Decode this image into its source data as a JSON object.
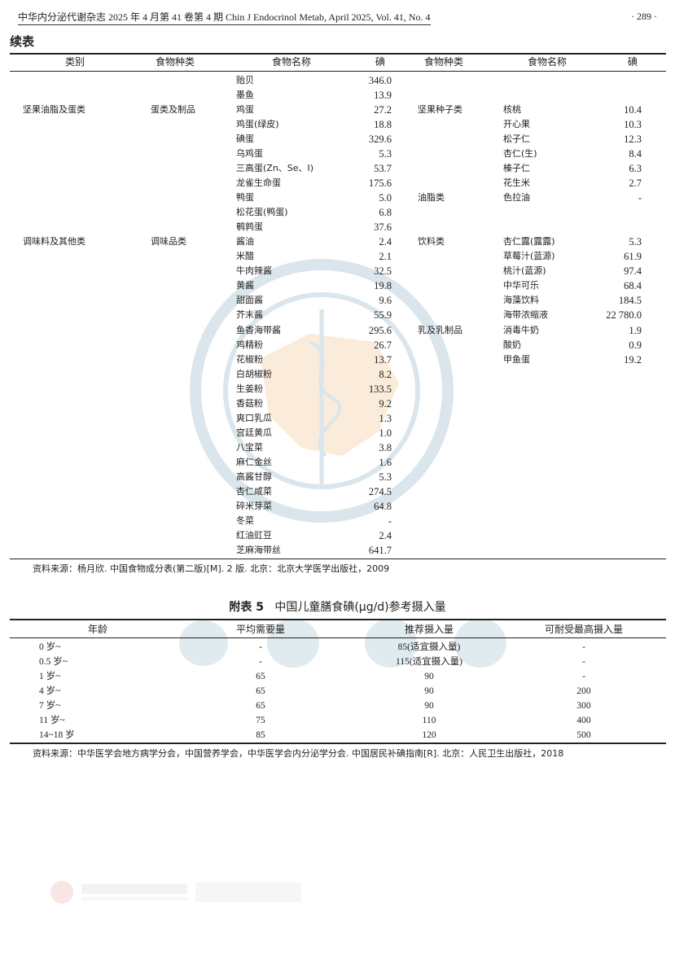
{
  "header": {
    "running_head": "中华内分泌代谢杂志 2025 年 4 月第 41 卷第 4 期   Chin J Endocrinol Metab, April 2025, Vol. 41, No. 4",
    "page_number": "· 289 ·"
  },
  "table1": {
    "continued_label": "续表",
    "headers": [
      "类别",
      "食物种类",
      "食物名称",
      "碘",
      "食物种类",
      "食物名称",
      "碘"
    ],
    "left_rows": [
      {
        "category": "",
        "type": "",
        "name": "贻贝",
        "iodine": "346.0"
      },
      {
        "category": "",
        "type": "",
        "name": "墨鱼",
        "iodine": "13.9"
      },
      {
        "category": "坚果油脂及蛋类",
        "type": "蛋类及制品",
        "name": "鸡蛋",
        "iodine": "27.2"
      },
      {
        "category": "",
        "type": "",
        "name": "鸡蛋(绿皮)",
        "iodine": "18.8"
      },
      {
        "category": "",
        "type": "",
        "name": "碘蛋",
        "iodine": "329.6"
      },
      {
        "category": "",
        "type": "",
        "name": "乌鸡蛋",
        "iodine": "5.3"
      },
      {
        "category": "",
        "type": "",
        "name": "三高蛋(Zn、Se、I)",
        "iodine": "53.7"
      },
      {
        "category": "",
        "type": "",
        "name": "龙雀生命蛋",
        "iodine": "175.6"
      },
      {
        "category": "",
        "type": "",
        "name": "鸭蛋",
        "iodine": "5.0"
      },
      {
        "category": "",
        "type": "",
        "name": "松花蛋(鸭蛋)",
        "iodine": "6.8"
      },
      {
        "category": "",
        "type": "",
        "name": "鹌鹑蛋",
        "iodine": "37.6"
      },
      {
        "category": "调味料及其他类",
        "type": "调味品类",
        "name": "酱油",
        "iodine": "2.4"
      },
      {
        "category": "",
        "type": "",
        "name": "米醋",
        "iodine": "2.1"
      },
      {
        "category": "",
        "type": "",
        "name": "牛肉辣酱",
        "iodine": "32.5"
      },
      {
        "category": "",
        "type": "",
        "name": "黄酱",
        "iodine": "19.8"
      },
      {
        "category": "",
        "type": "",
        "name": "甜面酱",
        "iodine": "9.6"
      },
      {
        "category": "",
        "type": "",
        "name": "芥末酱",
        "iodine": "55.9"
      },
      {
        "category": "",
        "type": "",
        "name": "鱼香海带酱",
        "iodine": "295.6"
      },
      {
        "category": "",
        "type": "",
        "name": "鸡精粉",
        "iodine": "26.7"
      },
      {
        "category": "",
        "type": "",
        "name": "花椒粉",
        "iodine": "13.7"
      },
      {
        "category": "",
        "type": "",
        "name": "白胡椒粉",
        "iodine": "8.2"
      },
      {
        "category": "",
        "type": "",
        "name": "生姜粉",
        "iodine": "133.5"
      },
      {
        "category": "",
        "type": "",
        "name": "香菇粉",
        "iodine": "9.2"
      },
      {
        "category": "",
        "type": "",
        "name": "爽口乳瓜",
        "iodine": "1.3"
      },
      {
        "category": "",
        "type": "",
        "name": "宫廷黄瓜",
        "iodine": "1.0"
      },
      {
        "category": "",
        "type": "",
        "name": "八宝菜",
        "iodine": "3.8"
      },
      {
        "category": "",
        "type": "",
        "name": "麻仁金丝",
        "iodine": "1.6"
      },
      {
        "category": "",
        "type": "",
        "name": "高酱甘醇",
        "iodine": "5.3"
      },
      {
        "category": "",
        "type": "",
        "name": "杏仁咸菜",
        "iodine": "274.5"
      },
      {
        "category": "",
        "type": "",
        "name": "碎米芽菜",
        "iodine": "64.8"
      },
      {
        "category": "",
        "type": "",
        "name": "冬菜",
        "iodine": "-"
      },
      {
        "category": "",
        "type": "",
        "name": "红油豇豆",
        "iodine": "2.4"
      },
      {
        "category": "",
        "type": "",
        "name": "芝麻海带丝",
        "iodine": "641.7"
      }
    ],
    "right_rows": [
      {
        "type": "",
        "name": "",
        "iodine": ""
      },
      {
        "type": "",
        "name": "",
        "iodine": ""
      },
      {
        "type": "坚果种子类",
        "name": "核桃",
        "iodine": "10.4"
      },
      {
        "type": "",
        "name": "开心果",
        "iodine": "10.3"
      },
      {
        "type": "",
        "name": "松子仁",
        "iodine": "12.3"
      },
      {
        "type": "",
        "name": "杏仁(生)",
        "iodine": "8.4"
      },
      {
        "type": "",
        "name": "榛子仁",
        "iodine": "6.3"
      },
      {
        "type": "",
        "name": "花生米",
        "iodine": "2.7"
      },
      {
        "type": "油脂类",
        "name": "色拉油",
        "iodine": "-"
      },
      {
        "type": "",
        "name": "",
        "iodine": ""
      },
      {
        "type": "",
        "name": "",
        "iodine": ""
      },
      {
        "type": "饮料类",
        "name": "杏仁露(露露)",
        "iodine": "5.3"
      },
      {
        "type": "",
        "name": "草莓汁(蓝源)",
        "iodine": "61.9"
      },
      {
        "type": "",
        "name": "桃汁(蓝源)",
        "iodine": "97.4"
      },
      {
        "type": "",
        "name": "中华可乐",
        "iodine": "68.4"
      },
      {
        "type": "",
        "name": "海藻饮料",
        "iodine": "184.5"
      },
      {
        "type": "",
        "name": "海带浓缩液",
        "iodine": "22 780.0"
      },
      {
        "type": "乳及乳制品",
        "name": "消毒牛奶",
        "iodine": "1.9"
      },
      {
        "type": "",
        "name": "酸奶",
        "iodine": "0.9"
      },
      {
        "type": "",
        "name": "甲鱼蛋",
        "iodine": "19.2"
      }
    ],
    "source_note": "资料来源：杨月欣. 中国食物成分表(第二版)[M]. 2 版. 北京：北京大学医学出版社，2009"
  },
  "table2": {
    "title_prefix": "附表 5",
    "title": "中国儿童膳食碘(μg/d)参考摄入量",
    "headers": [
      "年龄",
      "平均需要量",
      "推荐摄入量",
      "可耐受最高摄入量"
    ],
    "rows": [
      [
        "0 岁~",
        "-",
        "85(适宜摄入量)",
        "-"
      ],
      [
        "0.5 岁~",
        "-",
        "115(适宜摄入量)",
        "-"
      ],
      [
        "1 岁~",
        "65",
        "90",
        "-"
      ],
      [
        "4 岁~",
        "65",
        "90",
        "200"
      ],
      [
        "7 岁~",
        "65",
        "90",
        "300"
      ],
      [
        "11 岁~",
        "75",
        "110",
        "400"
      ],
      [
        "14~18 岁",
        "85",
        "120",
        "500"
      ]
    ],
    "source_note": "资料来源：中华医学会地方病学分会，中国营养学会，中华医学会内分泌学分会. 中国居民补碘指南[R]. 北京：人民卫生出版社，2018"
  },
  "watermark": {
    "seal_text": "CHINESE MEDICAL ASSOCIATION 1915 中华医学会",
    "banner_text": "中华医学会",
    "footer_logo": "中华医学会杂志社 Chinese Medical Association Publishing House",
    "seal_color": "#bcd3dc",
    "map_color": "#f6dcbc"
  }
}
